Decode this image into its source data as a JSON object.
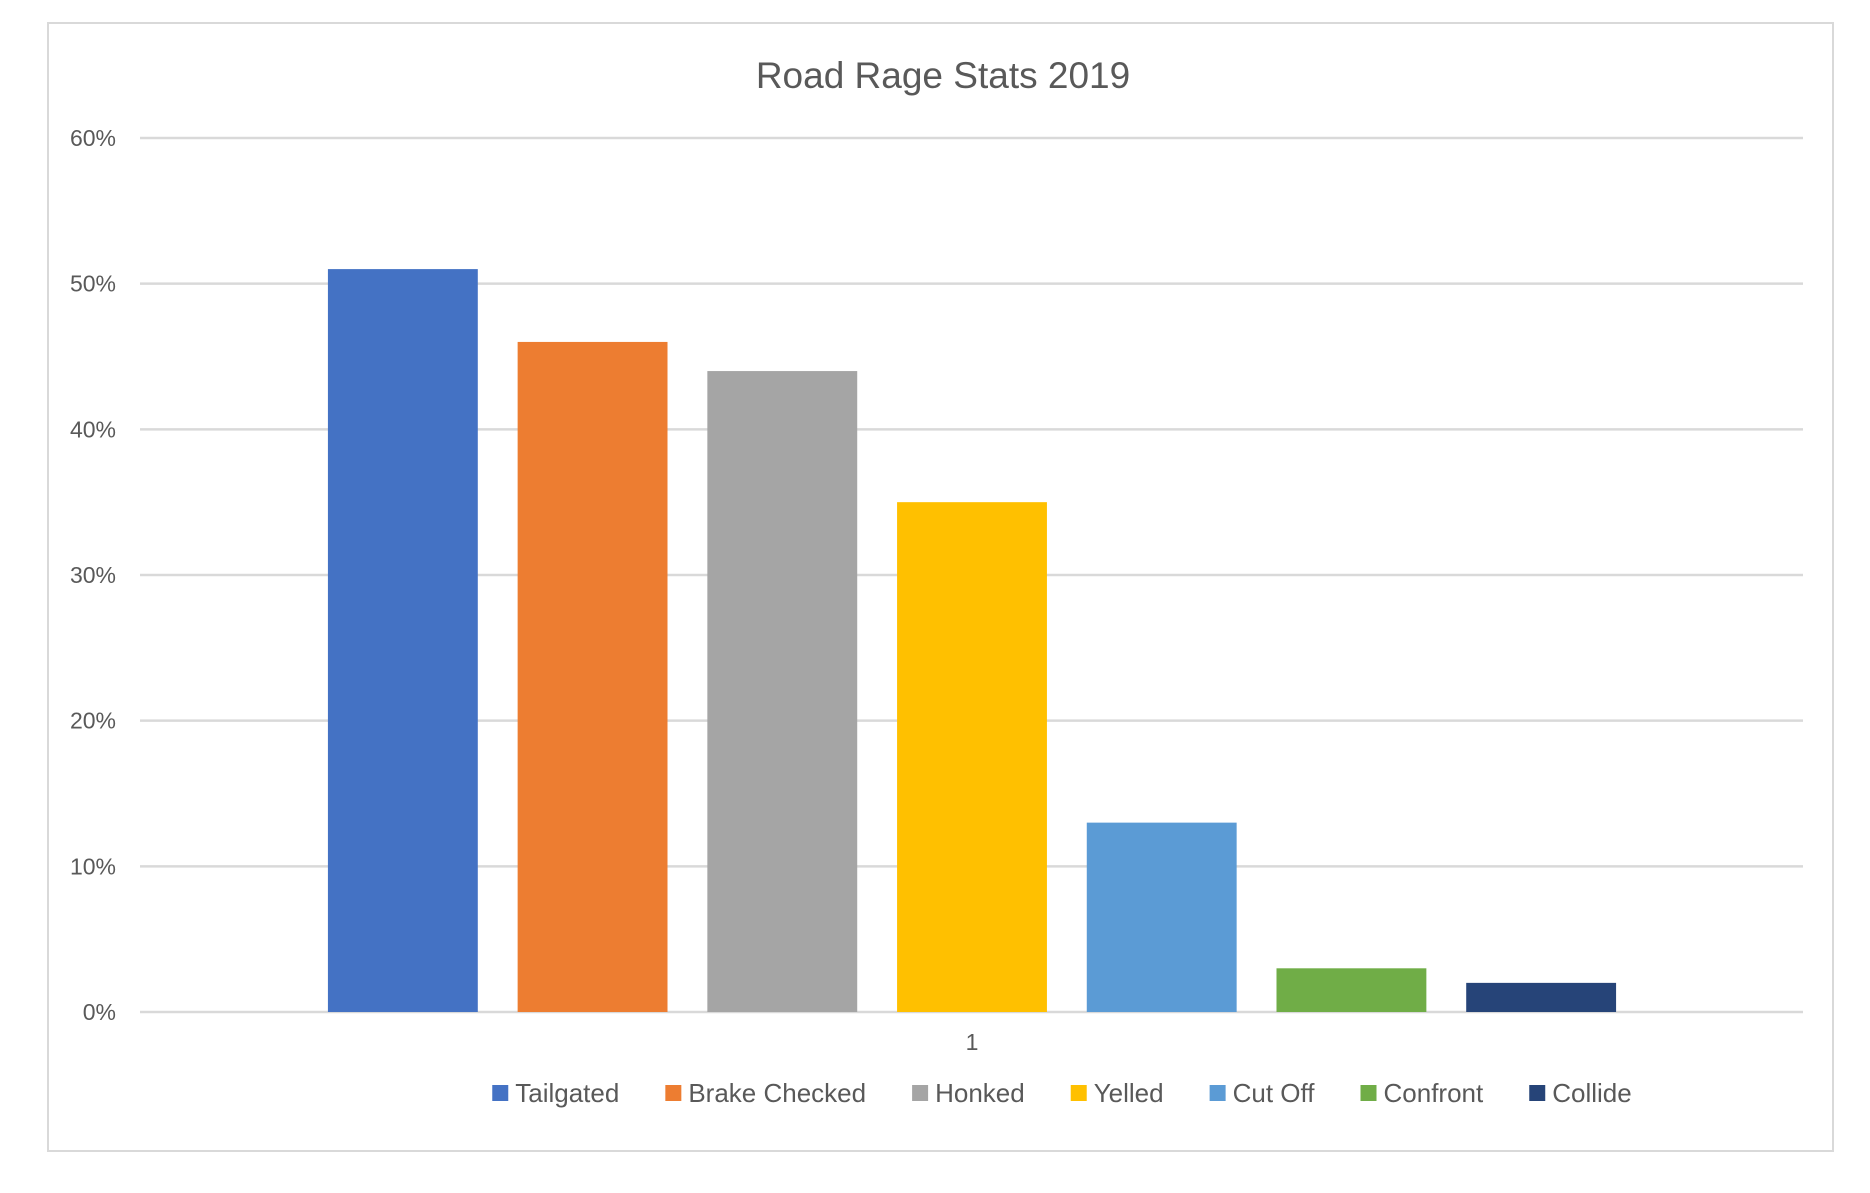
{
  "chart_data": {
    "type": "bar",
    "title": "Road Rage Stats 2019",
    "categories": [
      "1"
    ],
    "ylim": [
      0,
      0.6
    ],
    "yticks": [
      0,
      0.1,
      0.2,
      0.3,
      0.4,
      0.5,
      0.6
    ],
    "ytick_labels": [
      "0%",
      "10%",
      "20%",
      "30%",
      "40%",
      "50%",
      "60%"
    ],
    "grid": true,
    "legend_position": "bottom",
    "series": [
      {
        "name": "Tailgated",
        "values": [
          0.51
        ],
        "color": "#4472C4"
      },
      {
        "name": "Brake Checked",
        "values": [
          0.46
        ],
        "color": "#ED7D31"
      },
      {
        "name": "Honked",
        "values": [
          0.44
        ],
        "color": "#A5A5A5"
      },
      {
        "name": "Yelled",
        "values": [
          0.35
        ],
        "color": "#FFC000"
      },
      {
        "name": "Cut Off",
        "values": [
          0.13
        ],
        "color": "#5B9BD5"
      },
      {
        "name": "Confront",
        "values": [
          0.03
        ],
        "color": "#70AD47"
      },
      {
        "name": "Collide",
        "values": [
          0.02
        ],
        "color": "#264478"
      }
    ]
  }
}
